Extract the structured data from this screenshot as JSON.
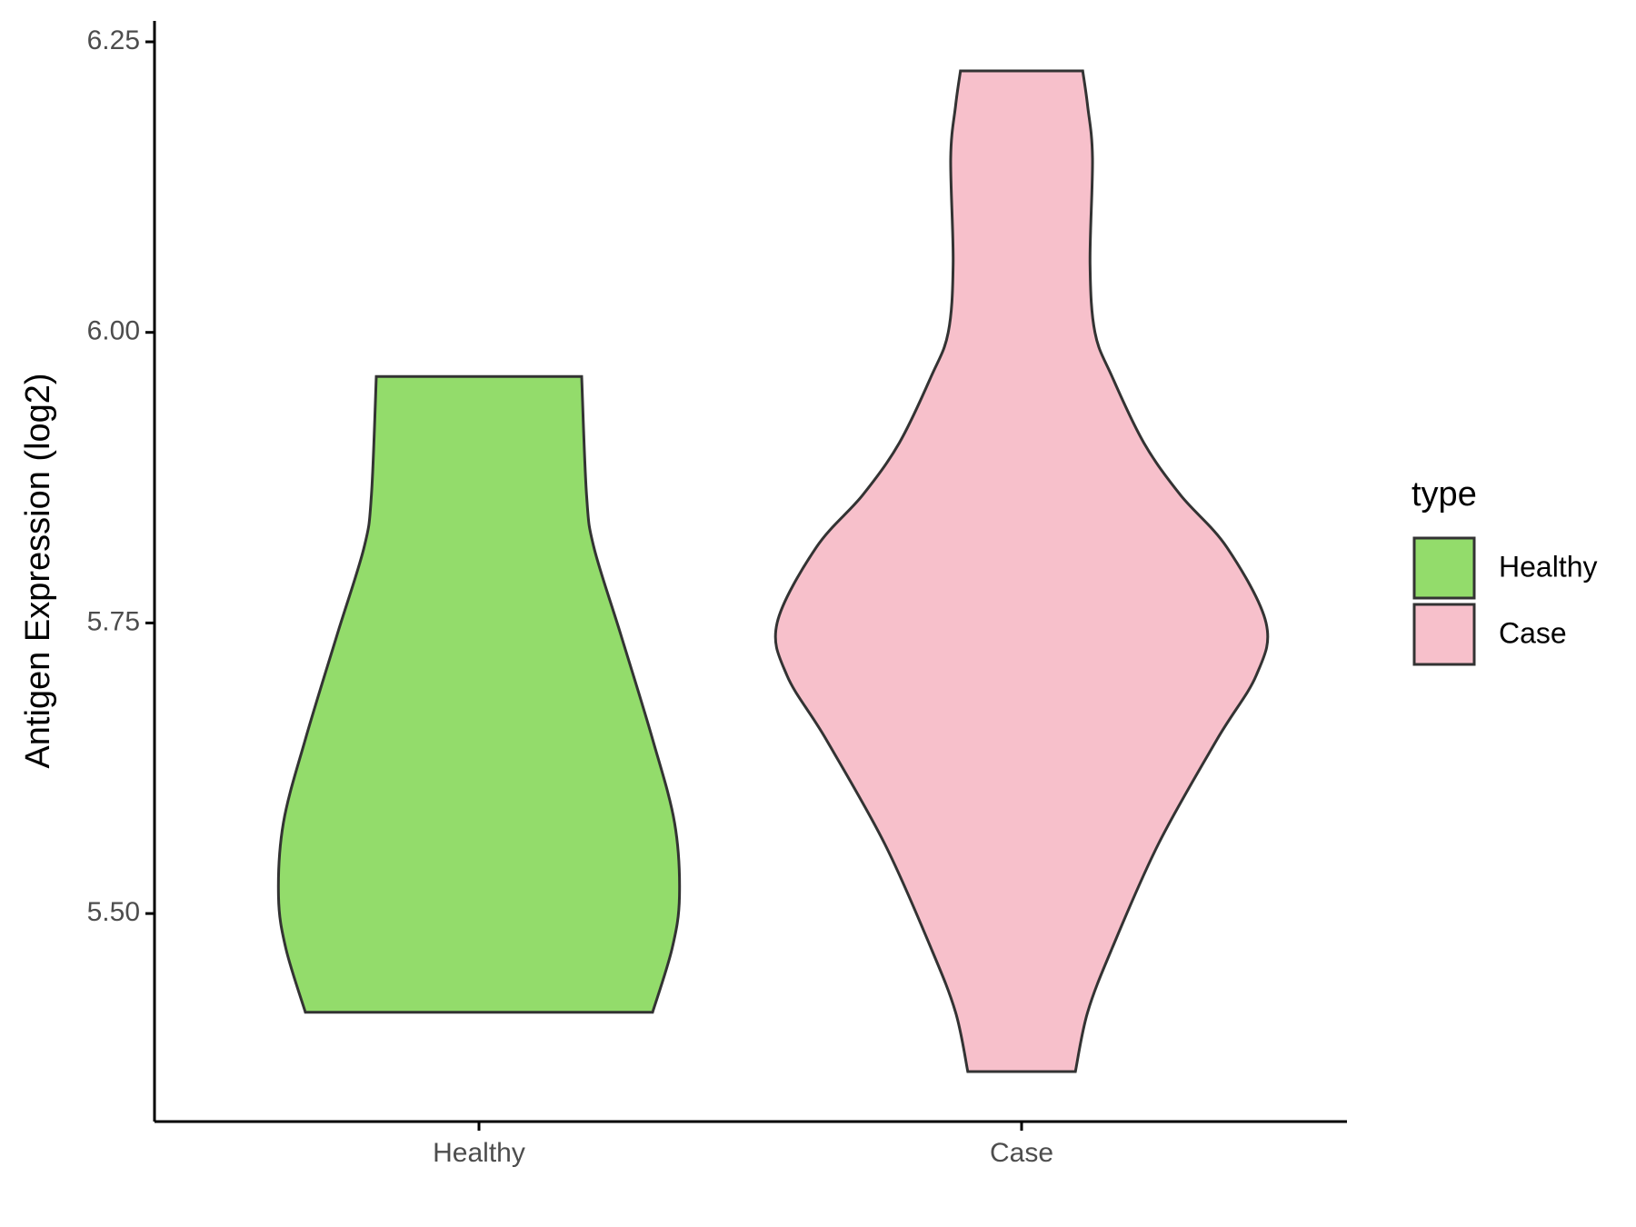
{
  "chart_data": {
    "type": "violin",
    "y_label": "Antigen Expression (log2)",
    "categories": [
      "Healthy",
      "Case"
    ],
    "legend_title": "type",
    "legend": "right",
    "series": [
      {
        "name": "Healthy",
        "color": "#93dc6b",
        "y": [
          5.962,
          5.86,
          5.815,
          5.74,
          5.65,
          5.578,
          5.515,
          5.47,
          5.415
        ],
        "density": [
          0.42,
          0.44,
          0.47,
          0.58,
          0.71,
          0.8,
          0.82,
          0.79,
          0.71
        ]
      },
      {
        "name": "Case",
        "color": "#f7c0cb",
        "y": [
          6.225,
          6.195,
          6.15,
          6.059,
          6.0,
          5.962,
          5.905,
          5.86,
          5.815,
          5.75,
          5.705,
          5.65,
          5.56,
          5.47,
          5.415,
          5.364
        ],
        "density": [
          0.25,
          0.27,
          0.29,
          0.28,
          0.3,
          0.37,
          0.5,
          0.65,
          0.84,
          1,
          0.96,
          0.8,
          0.56,
          0.37,
          0.27,
          0.22
        ]
      }
    ],
    "ylim": [
      5.321,
      6.268
    ],
    "yticks": [
      {
        "value": 5.5,
        "label": "5.50"
      },
      5.75,
      {
        "value": 6.0,
        "label": "6.00"
      },
      6.25
    ]
  }
}
